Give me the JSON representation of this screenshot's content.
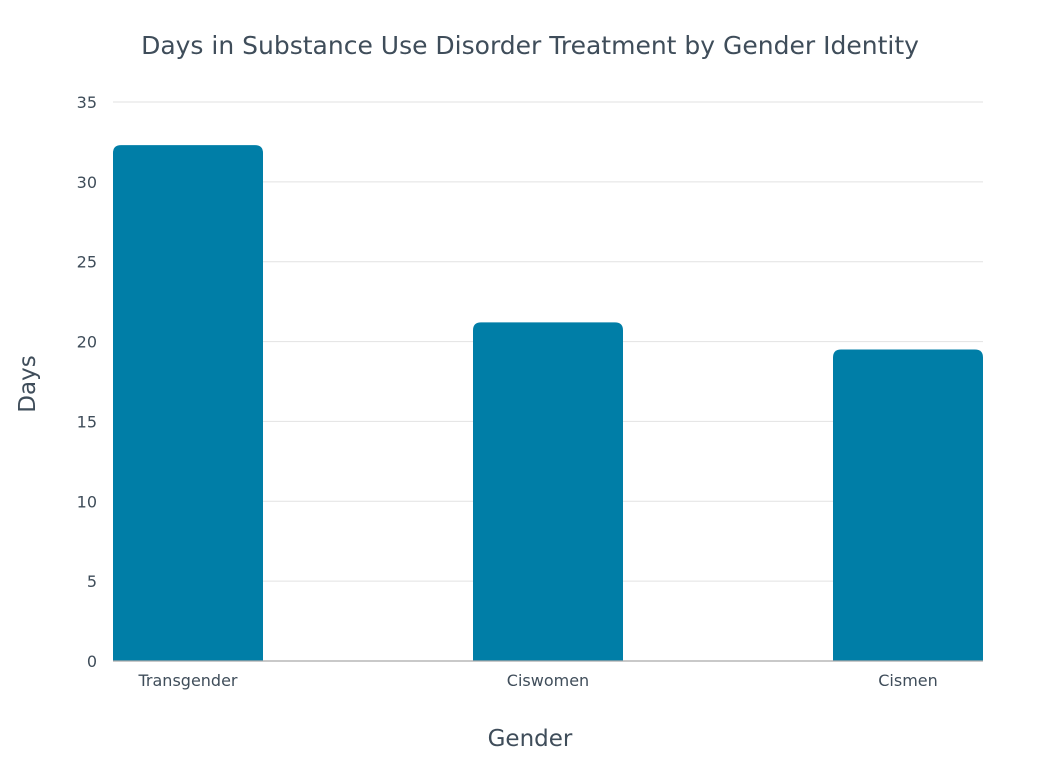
{
  "chart_data": {
    "type": "bar",
    "title": "Days in Substance Use Disorder Treatment by Gender Identity",
    "xlabel": "Gender",
    "ylabel": "Days",
    "categories": [
      "Transgender",
      "Ciswomen",
      "Cismen"
    ],
    "values": [
      32.3,
      21.2,
      19.5
    ],
    "ylim": [
      0,
      35
    ],
    "yticks": [
      0,
      5,
      10,
      15,
      20,
      25,
      30,
      35
    ],
    "grid": true,
    "legend": "none",
    "bar_color": "#007ea7"
  }
}
